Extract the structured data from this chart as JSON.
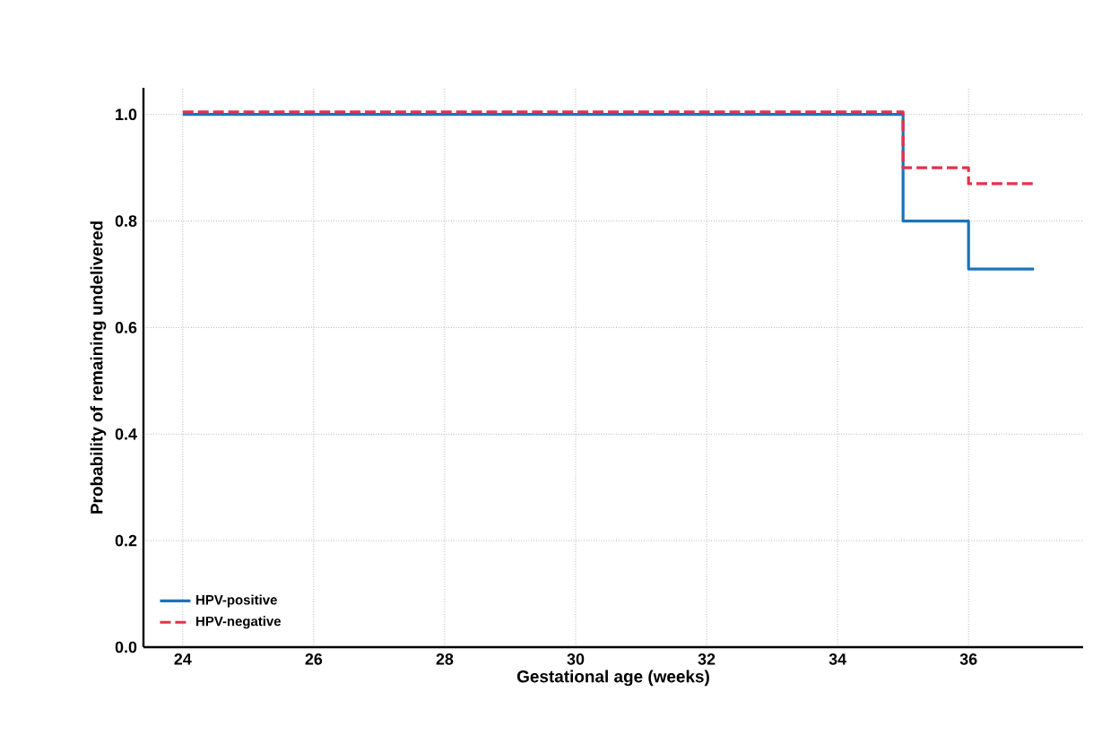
{
  "chart_data": {
    "type": "step",
    "xlabel": "Gestational age (weeks)",
    "ylabel": "Probability of remaining undelivered",
    "xlim": [
      23.4,
      37.75
    ],
    "xticks": [
      24,
      26,
      28,
      30,
      32,
      34,
      36
    ],
    "ylim": [
      0,
      1.05
    ],
    "yticks": [
      {
        "value": 0,
        "label": "0.0"
      },
      {
        "value": 0.2,
        "label": "0.2"
      },
      {
        "value": 0.4,
        "label": "0.4"
      },
      {
        "value": 0.6,
        "label": "0.6"
      },
      {
        "value": 0.8,
        "label": "0.8"
      },
      {
        "value": 1,
        "label": "1.0"
      }
    ],
    "grid": true,
    "legend": "bottom left",
    "series": [
      {
        "name": "HPV-positive",
        "color": "#1a74bb",
        "line_style": "solid",
        "x": [
          24,
          35,
          36,
          37
        ],
        "values": [
          1,
          0.8,
          0.71,
          0.71
        ]
      },
      {
        "name": "HPV-negative",
        "color": "#e8304a",
        "line_style": "dashed",
        "x": [
          24,
          35,
          36,
          37
        ],
        "values": [
          1.005,
          0.9,
          0.87,
          0.87
        ]
      }
    ]
  }
}
